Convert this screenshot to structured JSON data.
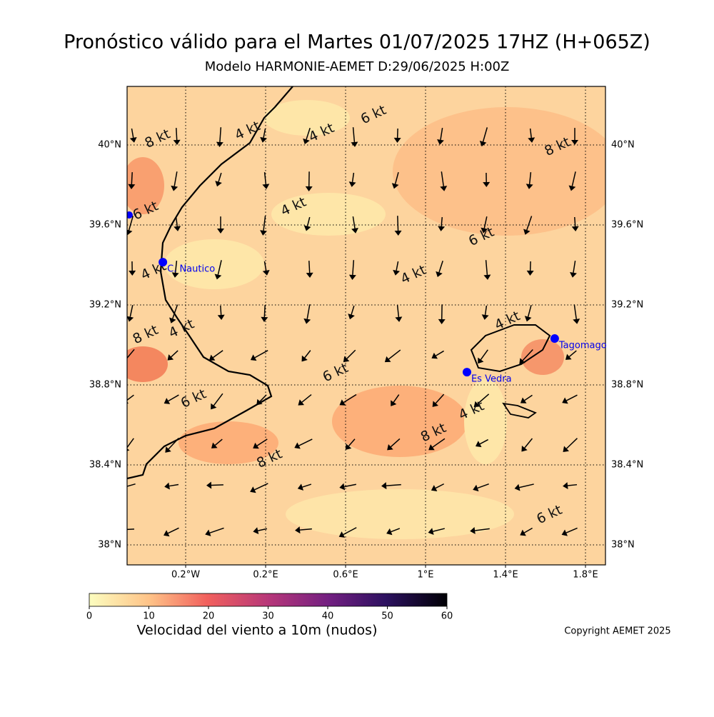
{
  "title": "Pronóstico válido para el Martes 01/07/2025 17HZ (H+065Z)",
  "subtitle": "Modelo HARMONIE-AEMET D:29/06/2025 H:00Z",
  "map": {
    "xlim": [
      -0.493,
      1.9
    ],
    "ylim": [
      37.9,
      40.293
    ],
    "xticks": [
      {
        "value": -0.2,
        "label": "0.2°W"
      },
      {
        "value": 0.2,
        "label": "0.2°E"
      },
      {
        "value": 0.6,
        "label": "0.6°E"
      },
      {
        "value": 1,
        "label": "1°E"
      },
      {
        "value": 1.4,
        "label": "1.4°E"
      },
      {
        "value": 1.8,
        "label": "1.8°E"
      }
    ],
    "yticks": [
      {
        "value": 38,
        "label": "38°N"
      },
      {
        "value": 38.4,
        "label": "38.4°N"
      },
      {
        "value": 38.8,
        "label": "38.8°N"
      },
      {
        "value": 39.2,
        "label": "39.2°N"
      },
      {
        "value": 39.6,
        "label": "39.6°N"
      },
      {
        "value": 40,
        "label": "40°N"
      }
    ],
    "stations": [
      {
        "name": "C. Nautico",
        "lon": -0.314,
        "lat": 39.414
      },
      {
        "name": "Es Vedra",
        "lon": 1.207,
        "lat": 38.864
      },
      {
        "name": "Tagomago",
        "lon": 1.646,
        "lat": 39.032
      }
    ],
    "contour_labels": [
      {
        "text": "8 kt",
        "lon": -0.34,
        "lat": 40.03
      },
      {
        "text": "4 kt",
        "lon": 0.11,
        "lat": 40.07
      },
      {
        "text": "4 kt",
        "lon": 0.48,
        "lat": 40.06
      },
      {
        "text": "6 kt",
        "lon": 0.74,
        "lat": 40.15
      },
      {
        "text": "8 kt",
        "lon": 1.66,
        "lat": 39.99
      },
      {
        "text": "6 kt",
        "lon": -0.4,
        "lat": 39.67
      },
      {
        "text": "4 kt",
        "lon": 0.34,
        "lat": 39.69
      },
      {
        "text": "6 kt",
        "lon": 1.28,
        "lat": 39.54
      },
      {
        "text": "4 kt",
        "lon": -0.36,
        "lat": 39.37
      },
      {
        "text": "4 kt",
        "lon": 0.94,
        "lat": 39.35
      },
      {
        "text": "4 kt",
        "lon": 1.41,
        "lat": 39.12
      },
      {
        "text": "4 kt",
        "lon": -0.22,
        "lat": 39.08
      },
      {
        "text": "8 kt",
        "lon": -0.4,
        "lat": 39.05
      },
      {
        "text": "6 kt",
        "lon": 0.55,
        "lat": 38.86
      },
      {
        "text": "6 kt",
        "lon": -0.16,
        "lat": 38.73
      },
      {
        "text": "4 kt",
        "lon": 1.23,
        "lat": 38.67
      },
      {
        "text": "8 kt",
        "lon": 1.04,
        "lat": 38.56
      },
      {
        "text": "8 kt",
        "lon": 0.22,
        "lat": 38.43
      },
      {
        "text": "6 kt",
        "lon": 1.62,
        "lat": 38.15
      }
    ]
  },
  "colorbar": {
    "label": "Velocidad del viento a 10m (nudos)",
    "lim": [
      0,
      60
    ],
    "ticks": [
      0,
      10,
      20,
      30,
      40,
      50,
      60
    ]
  },
  "copyright": "Copyright AEMET 2025"
}
